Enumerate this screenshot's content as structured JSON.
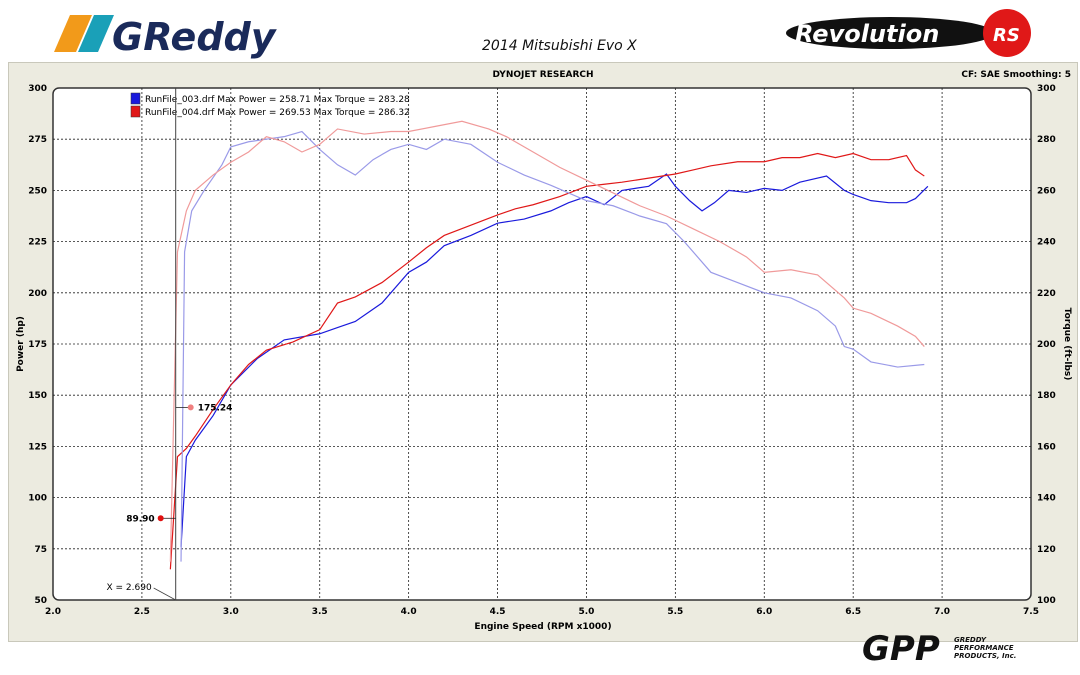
{
  "header": {
    "title": "2014 Mitsubishi Evo X",
    "left_logo": "GReddy",
    "right_logo": "Revolution RS",
    "bottom_logo": "GPP",
    "bottom_logo_text": "GREDDY PERFORMANCE PRODUCTS, Inc."
  },
  "chart_data": {
    "type": "line",
    "title": "DYNOJET RESEARCH",
    "info": "CF: SAE  Smoothing: 5",
    "xlabel": "Engine Speed (RPM x1000)",
    "ylabel": "Power (hp)",
    "y2label": "Torque (ft-lbs)",
    "xlim": [
      2.0,
      7.5
    ],
    "ylim": [
      50,
      300
    ],
    "y2lim": [
      100,
      300
    ],
    "xticks": [
      "2.0",
      "2.5",
      "3.0",
      "3.5",
      "4.0",
      "4.5",
      "5.0",
      "5.5",
      "6.0",
      "6.5",
      "7.0",
      "7.5"
    ],
    "yticks": [
      "50",
      "75",
      "100",
      "125",
      "150",
      "175",
      "200",
      "225",
      "250",
      "275",
      "300"
    ],
    "y2ticks": [
      "100",
      "120",
      "140",
      "160",
      "180",
      "200",
      "220",
      "240",
      "260",
      "280",
      "300"
    ],
    "grid": true,
    "legend": [
      {
        "text": "RunFile_003.drf Max Power = 258.71 Max Torque = 283.28",
        "color": "#1a1adc"
      },
      {
        "text": "RunFile_004.drf Max Power = 269.53 Max Torque = 286.32",
        "color": "#e01818"
      }
    ],
    "cursor": {
      "label": "X = 2.690",
      "x": 2.69,
      "markers": [
        {
          "text": "175.24",
          "value": 175.24,
          "axis": "torque",
          "color": "#f08080"
        },
        {
          "text": "89.90",
          "value": 89.9,
          "axis": "power",
          "color": "#e01010"
        }
      ]
    },
    "series": [
      {
        "run": "RunFile_003.drf",
        "kind": "power",
        "axis": "left",
        "color": "#1a1adc",
        "x": [
          2.72,
          2.75,
          2.8,
          2.9,
          3.0,
          3.15,
          3.3,
          3.5,
          3.6,
          3.7,
          3.85,
          4.0,
          4.1,
          4.2,
          4.35,
          4.5,
          4.65,
          4.8,
          4.9,
          5.0,
          5.1,
          5.2,
          5.35,
          5.45,
          5.5,
          5.58,
          5.65,
          5.72,
          5.8,
          5.9,
          6.0,
          6.1,
          6.2,
          6.35,
          6.45,
          6.5,
          6.6,
          6.7,
          6.8,
          6.85,
          6.92
        ],
        "y": [
          76,
          120,
          128,
          140,
          155,
          168,
          177,
          180,
          183,
          186,
          195,
          210,
          215,
          223,
          228,
          234,
          236,
          240,
          244,
          247,
          243,
          250,
          252,
          258,
          252,
          245,
          240,
          244,
          250,
          249,
          251,
          250,
          254,
          257,
          250,
          248,
          245,
          244,
          244,
          246,
          252
        ]
      },
      {
        "run": "RunFile_004.drf",
        "kind": "power",
        "axis": "left",
        "color": "#e01818",
        "x": [
          2.66,
          2.7,
          2.75,
          2.8,
          2.9,
          3.0,
          3.1,
          3.2,
          3.35,
          3.5,
          3.6,
          3.7,
          3.85,
          4.0,
          4.1,
          4.2,
          4.35,
          4.5,
          4.6,
          4.7,
          4.85,
          5.0,
          5.1,
          5.2,
          5.35,
          5.5,
          5.6,
          5.7,
          5.85,
          6.0,
          6.1,
          6.2,
          6.3,
          6.4,
          6.5,
          6.6,
          6.7,
          6.8,
          6.85,
          6.9
        ],
        "y": [
          65,
          120,
          124,
          130,
          143,
          155,
          165,
          172,
          176,
          182,
          195,
          198,
          205,
          215,
          222,
          228,
          233,
          238,
          241,
          243,
          247,
          252,
          253,
          254,
          256,
          258,
          260,
          262,
          264,
          264,
          266,
          266,
          268,
          266,
          268,
          265,
          265,
          267,
          260,
          257
        ]
      },
      {
        "run": "RunFile_003.drf",
        "kind": "torque",
        "axis": "right",
        "color": "#9a9ae8",
        "x": [
          2.72,
          2.74,
          2.78,
          2.85,
          2.95,
          3.0,
          3.1,
          3.2,
          3.3,
          3.4,
          3.5,
          3.6,
          3.7,
          3.8,
          3.9,
          4.0,
          4.1,
          4.2,
          4.35,
          4.5,
          4.65,
          4.8,
          5.0,
          5.15,
          5.3,
          5.45,
          5.55,
          5.7,
          5.85,
          6.0,
          6.15,
          6.3,
          6.4,
          6.45,
          6.5,
          6.6,
          6.75,
          6.9
        ],
        "y": [
          115,
          236,
          252,
          260,
          270,
          277,
          279,
          280,
          281,
          283,
          276,
          270,
          266,
          272,
          276,
          278,
          276,
          280,
          278,
          271,
          266,
          262,
          256,
          254,
          250,
          247,
          240,
          228,
          224,
          220,
          218,
          213,
          207,
          199,
          198,
          193,
          191,
          192
        ]
      },
      {
        "run": "RunFile_004.drf",
        "kind": "torque",
        "axis": "right",
        "color": "#f09a9a",
        "x": [
          2.66,
          2.7,
          2.75,
          2.8,
          2.9,
          3.0,
          3.1,
          3.2,
          3.3,
          3.4,
          3.5,
          3.6,
          3.75,
          3.9,
          4.0,
          4.15,
          4.3,
          4.45,
          4.55,
          4.7,
          4.85,
          5.0,
          5.15,
          5.3,
          5.45,
          5.6,
          5.75,
          5.9,
          6.0,
          6.15,
          6.3,
          6.45,
          6.5,
          6.6,
          6.75,
          6.85,
          6.9
        ],
        "y": [
          115,
          236,
          252,
          260,
          266,
          271,
          275,
          281,
          279,
          275,
          278,
          284,
          282,
          283,
          283,
          285,
          287,
          284,
          281,
          275,
          269,
          264,
          259,
          254,
          250,
          245,
          240,
          234,
          228,
          229,
          227,
          218,
          214,
          212,
          207,
          203,
          199
        ]
      }
    ]
  }
}
